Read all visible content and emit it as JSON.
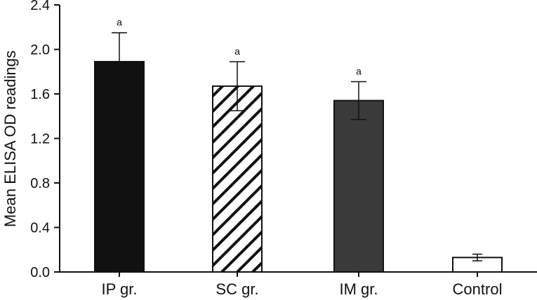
{
  "chart_data": {
    "type": "bar",
    "title": "",
    "xlabel": "",
    "ylabel": "Mean ELISA OD readings",
    "ylim": [
      0.0,
      2.4
    ],
    "yticks": [
      "0.0",
      "0.4",
      "0.8",
      "1.2",
      "1.6",
      "2.0",
      "2.4"
    ],
    "grid": false,
    "categories": [
      "IP gr.",
      "SC gr.",
      "IM gr.",
      "Control"
    ],
    "values": [
      1.89,
      1.67,
      1.54,
      0.13
    ],
    "error_low": [
      1.63,
      1.45,
      1.37,
      0.1
    ],
    "error_high": [
      2.15,
      1.89,
      1.71,
      0.16
    ],
    "annotations": [
      "a",
      "a",
      "a",
      ""
    ],
    "fills": [
      "solid-black",
      "diagonal-hatch",
      "solid-dark-gray",
      "white"
    ],
    "colors": {
      "black": "#111111",
      "dark_gray": "#3a3a3a",
      "white": "#ffffff"
    }
  }
}
